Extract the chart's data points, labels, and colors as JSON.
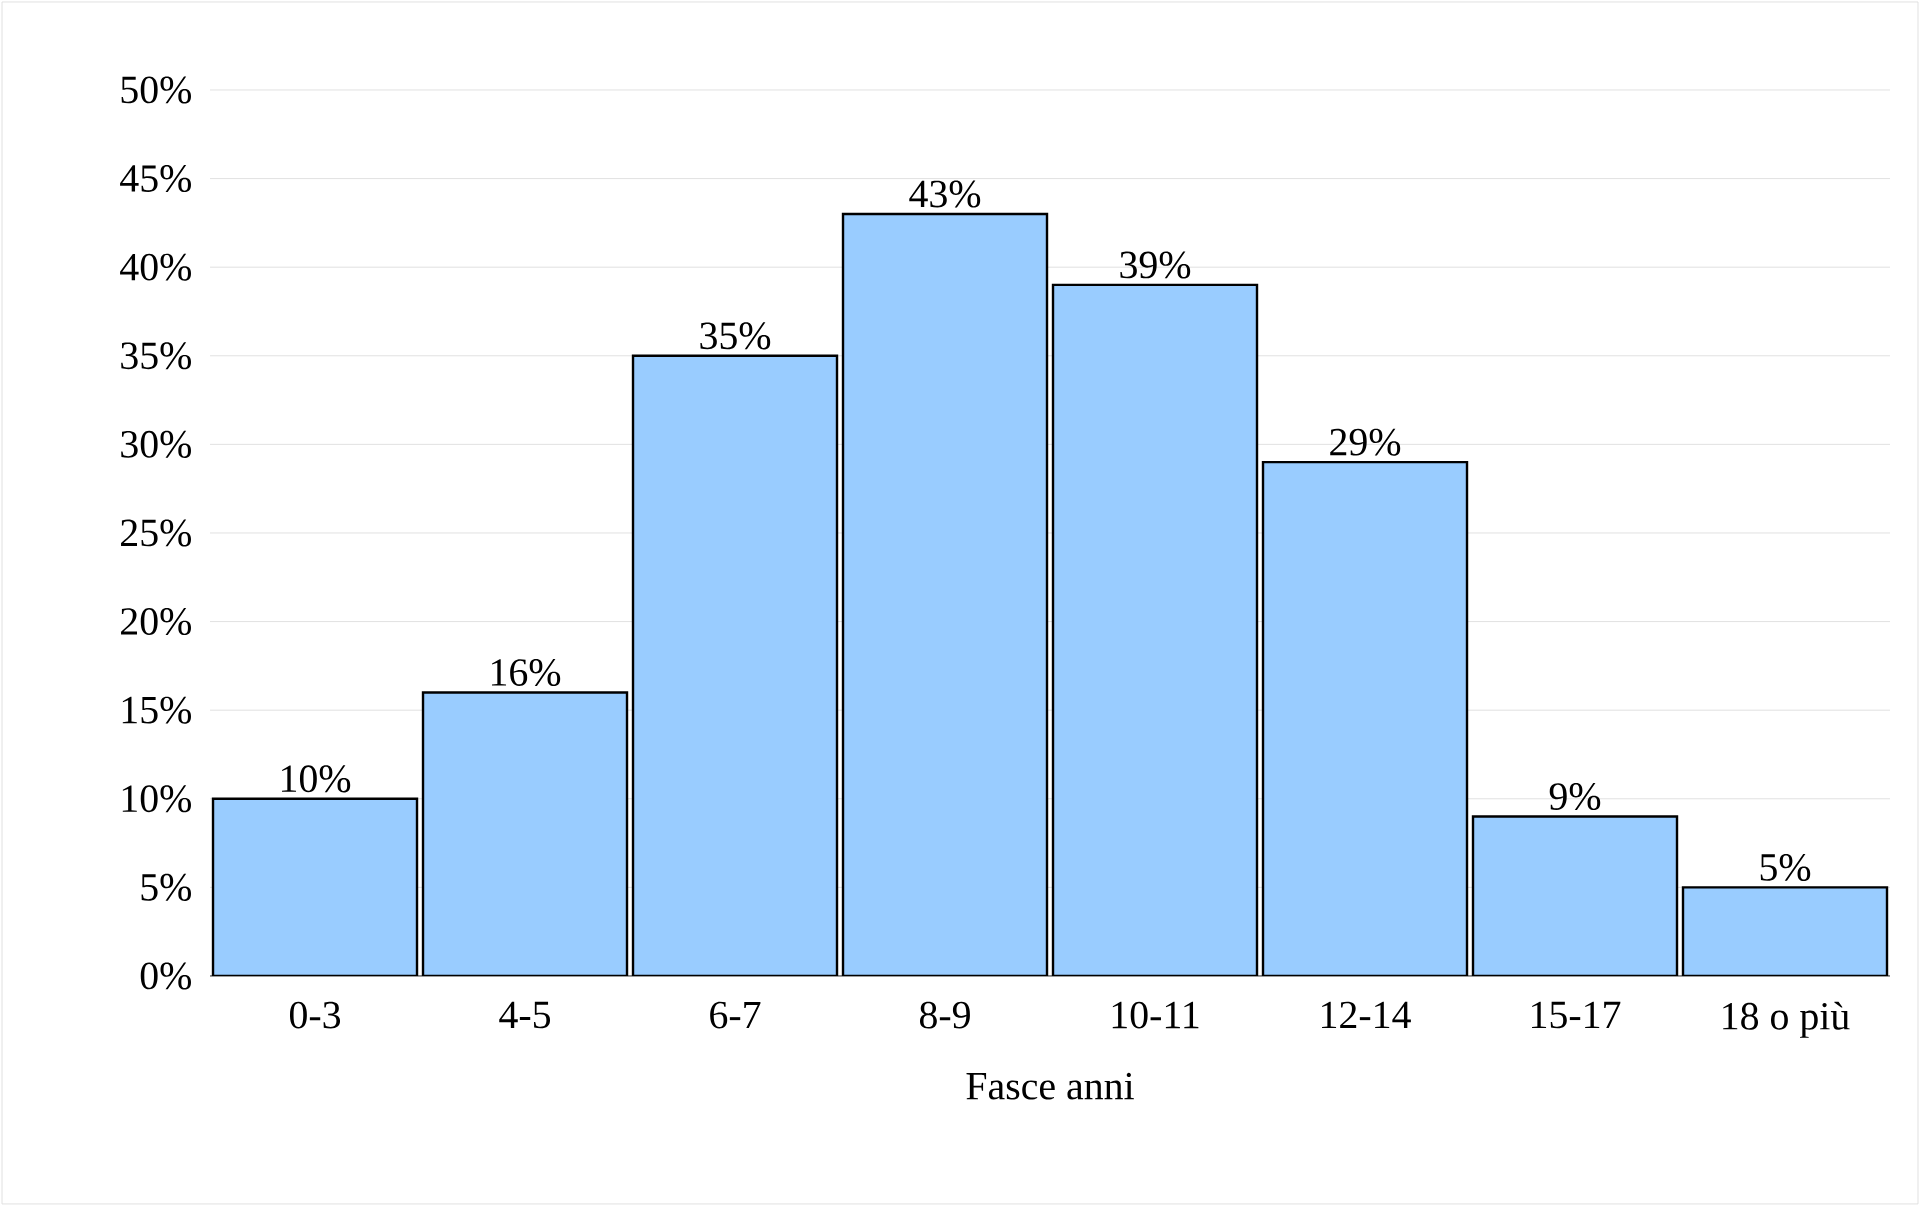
{
  "chart_data": {
    "type": "bar",
    "xlabel": "Fasce anni",
    "categories": [
      "0-3",
      "4-5",
      "6-7",
      "8-9",
      "10-11",
      "12-14",
      "15-17",
      "18 o più"
    ],
    "values": [
      10,
      16,
      35,
      43,
      39,
      29,
      9,
      5
    ],
    "value_labels": [
      "10%",
      "16%",
      "35%",
      "43%",
      "39%",
      "29%",
      "9%",
      "5%"
    ],
    "color": "#99ccff",
    "ylim": [
      0,
      50
    ],
    "yticks": [
      {
        "value": 0,
        "label": "0%"
      },
      {
        "value": 5,
        "label": "5%"
      },
      {
        "value": 10,
        "label": "10%"
      },
      {
        "value": 15,
        "label": "15%"
      },
      {
        "value": 20,
        "label": "20%"
      },
      {
        "value": 25,
        "label": "25%"
      },
      {
        "value": 30,
        "label": "30%"
      },
      {
        "value": 35,
        "label": "35%"
      },
      {
        "value": 40,
        "label": "40%"
      },
      {
        "value": 45,
        "label": "45%"
      },
      {
        "value": 50,
        "label": "50%"
      }
    ],
    "grid": "y"
  }
}
